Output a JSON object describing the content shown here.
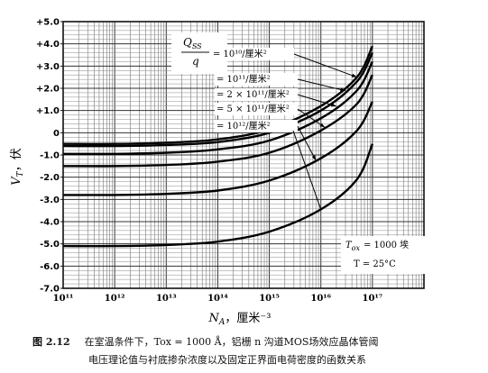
{
  "figure": {
    "number": "图 2.12",
    "caption_line1": "在室温条件下，T<sub>ox</sub> = 1000 Å，铝栅 n 沟道MOS场效应晶体管阈",
    "caption_line1_text": "在室温条件下，Tox = 1000 Å，铝栅 n 沟道MOS场效应晶体管阈",
    "caption_line2": "电压理论值与衬底掺杂浓度以及固定正界面电荷密度的函数关系"
  },
  "chart_data": {
    "type": "line",
    "xlabel": "N_A，厘米⁻³",
    "xlabel_base": "N",
    "xlabel_sub": "A",
    "xlabel_rest": "，厘米⁻³",
    "ylabel": "V_T，伏",
    "ylabel_base": "V",
    "ylabel_sub": "T",
    "ylabel_rest": "，伏",
    "x_scale": "log",
    "xlim": [
      100000000000.0,
      1e+18
    ],
    "ylim": [
      -7.0,
      5.0
    ],
    "grid": true,
    "x_ticks": [
      "10¹¹",
      "10¹²",
      "10¹³",
      "10¹⁴",
      "10¹⁵",
      "10¹⁶",
      "10¹⁷"
    ],
    "x_tick_exponents": [
      11,
      12,
      13,
      14,
      15,
      16,
      17
    ],
    "y_ticks": [
      "+5.0",
      "+4.0",
      "+3.0",
      "+2.0",
      "+1.0",
      "0",
      "-1.0",
      "-2.0",
      "-3.0",
      "-4.0",
      "-5.0",
      "-6.0",
      "-7.0"
    ],
    "y_tick_values": [
      5,
      4,
      3,
      2,
      1,
      0,
      -1,
      -2,
      -3,
      -4,
      -5,
      -6,
      -7
    ],
    "legend_header": "Q_SS/q",
    "series": [
      {
        "name": "= 10¹⁰/厘米²",
        "x": [
          100000000000.0,
          1000000000000.0,
          10000000000000.0,
          100000000000000.0,
          1000000000000000.0,
          1e+16,
          5e+16,
          1e+17
        ],
        "y": [
          -0.5,
          -0.5,
          -0.45,
          -0.3,
          0.15,
          1.2,
          2.5,
          3.9
        ]
      },
      {
        "name": "= 10¹¹/厘米²",
        "x": [
          100000000000.0,
          1000000000000.0,
          10000000000000.0,
          100000000000000.0,
          1000000000000000.0,
          1e+16,
          5e+16,
          1e+17
        ],
        "y": [
          -0.6,
          -0.6,
          -0.55,
          -0.42,
          0.0,
          1.0,
          2.3,
          3.6
        ]
      },
      {
        "name": "= 2 × 10¹¹/厘米²",
        "x": [
          100000000000.0,
          1000000000000.0,
          10000000000000.0,
          100000000000000.0,
          1000000000000000.0,
          1e+16,
          5e+16,
          1e+17
        ],
        "y": [
          -0.95,
          -0.95,
          -0.9,
          -0.75,
          -0.35,
          0.65,
          1.9,
          3.2
        ]
      },
      {
        "name": "= 5 × 10¹¹/厘米²",
        "x": [
          100000000000.0,
          1000000000000.0,
          10000000000000.0,
          100000000000000.0,
          1000000000000000.0,
          1e+16,
          5e+16,
          1e+17
        ],
        "y": [
          -1.5,
          -1.5,
          -1.45,
          -1.3,
          -0.9,
          0.1,
          1.3,
          2.6
        ]
      },
      {
        "name": "= 10¹²/厘米²",
        "x": [
          100000000000.0,
          1000000000000.0,
          10000000000000.0,
          100000000000000.0,
          1000000000000000.0,
          1e+16,
          5e+16,
          1e+17
        ],
        "y": [
          -2.8,
          -2.8,
          -2.75,
          -2.6,
          -2.15,
          -1.15,
          0.1,
          1.4
        ]
      },
      {
        "name": "",
        "x": [
          100000000000.0,
          1000000000000.0,
          10000000000000.0,
          100000000000000.0,
          1000000000000000.0,
          1e+16,
          5e+16,
          1e+17
        ],
        "y": [
          -5.1,
          -5.1,
          -5.05,
          -4.9,
          -4.45,
          -3.45,
          -2.1,
          -0.5
        ]
      }
    ],
    "annotations": {
      "tox": "T_ox = 1000 埃",
      "tox_base": "T",
      "tox_sub": "ox",
      "tox_rest": "= 1000 埃",
      "temp": "T = 25°C"
    }
  }
}
